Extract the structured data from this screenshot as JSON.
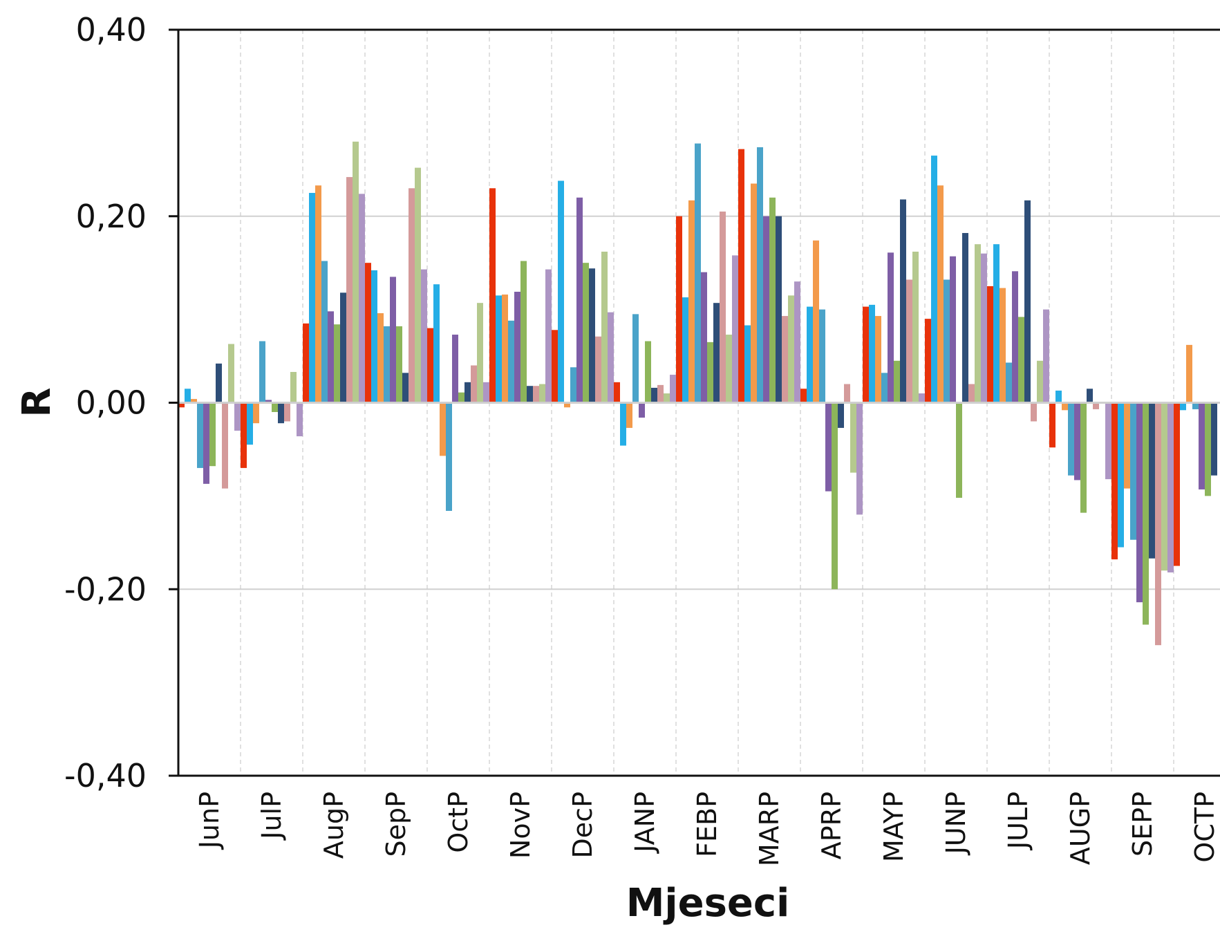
{
  "chart_data": {
    "type": "bar",
    "title": "",
    "xlabel": "Mjeseci",
    "ylabel": "R",
    "ylim": [
      -0.4,
      0.4
    ],
    "yticks": [
      "0,40",
      "0,20",
      "0,00",
      "-0,20",
      "-0,40"
    ],
    "ytick_values": [
      0.4,
      0.2,
      0.0,
      -0.2,
      -0.4
    ],
    "grid": true,
    "legend": "none",
    "categories": [
      "JunP",
      "JulP",
      "AugP",
      "SepP",
      "OctP",
      "NovP",
      "DecP",
      "JANP",
      "FEBP",
      "MARP",
      "APRP",
      "MAYP",
      "JUNP",
      "JULP",
      "AUGP",
      "SEPP",
      "OCTP"
    ],
    "colors": [
      "#e8320a",
      "#25aee6",
      "#f39a4b",
      "#4aa3c9",
      "#7e5ea6",
      "#8db55a",
      "#2e4e78",
      "#d49a9a",
      "#b5c98e",
      "#ad95c4"
    ],
    "series": [
      {
        "values": [
          -0.005,
          -0.07,
          0.085,
          0.15,
          0.08,
          0.23,
          0.078,
          0.022,
          0.2,
          0.272,
          0.015,
          0.103,
          0.09,
          0.125,
          -0.048,
          -0.168,
          -0.175
        ]
      },
      {
        "values": [
          0.015,
          -0.045,
          0.225,
          0.142,
          0.127,
          0.115,
          0.238,
          -0.046,
          0.113,
          0.083,
          0.103,
          0.105,
          0.265,
          0.17,
          0.013,
          -0.155,
          -0.008
        ]
      },
      {
        "values": [
          0.004,
          -0.022,
          0.233,
          0.096,
          -0.057,
          0.116,
          -0.005,
          -0.027,
          0.217,
          0.235,
          0.174,
          0.093,
          0.233,
          0.123,
          -0.008,
          -0.092,
          0.062
        ]
      },
      {
        "values": [
          -0.07,
          0.066,
          0.152,
          0.082,
          -0.116,
          0.088,
          0.038,
          0.095,
          0.278,
          0.274,
          0.1,
          0.032,
          0.132,
          0.043,
          -0.078,
          -0.147,
          -0.007
        ]
      },
      {
        "values": [
          -0.087,
          0.003,
          0.098,
          0.135,
          0.073,
          0.119,
          0.22,
          -0.016,
          0.14,
          0.2,
          -0.095,
          0.161,
          0.157,
          0.141,
          -0.083,
          -0.214,
          -0.093
        ]
      },
      {
        "values": [
          -0.068,
          -0.01,
          0.084,
          0.082,
          0.011,
          0.152,
          0.15,
          0.066,
          0.065,
          0.22,
          -0.2,
          0.045,
          -0.102,
          0.092,
          -0.118,
          -0.238,
          -0.1
        ]
      },
      {
        "values": [
          0.042,
          -0.022,
          0.118,
          0.032,
          0.022,
          0.018,
          0.144,
          0.016,
          0.107,
          0.2,
          -0.027,
          0.218,
          0.182,
          0.217,
          0.015,
          -0.167,
          -0.078
        ]
      },
      {
        "values": [
          -0.092,
          -0.02,
          0.242,
          0.23,
          0.04,
          0.018,
          0.071,
          0.019,
          0.205,
          0.093,
          0.02,
          0.132,
          0.02,
          -0.02,
          -0.007,
          -0.26,
          0.0
        ]
      },
      {
        "values": [
          0.063,
          0.033,
          0.28,
          0.252,
          0.107,
          0.02,
          0.162,
          0.01,
          0.073,
          0.115,
          -0.075,
          0.162,
          0.17,
          0.045,
          0.0,
          -0.18,
          0.0
        ]
      },
      {
        "values": [
          -0.03,
          -0.036,
          0.224,
          0.143,
          0.022,
          0.143,
          0.097,
          0.03,
          0.158,
          0.13,
          -0.12,
          0.01,
          0.16,
          0.1,
          -0.082,
          -0.182,
          0.0
        ]
      }
    ]
  }
}
